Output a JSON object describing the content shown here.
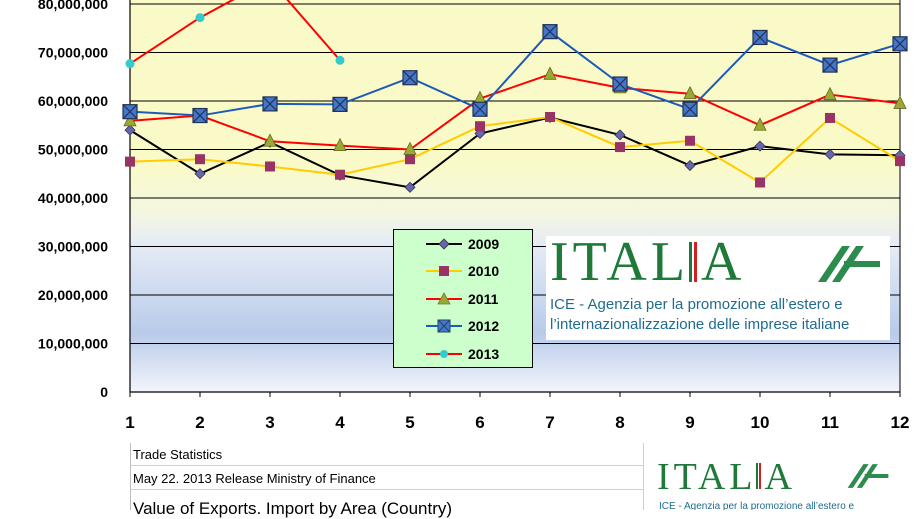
{
  "chart_data": {
    "type": "line",
    "x": [
      1,
      2,
      3,
      4,
      5,
      6,
      7,
      8,
      9,
      10,
      11,
      12
    ],
    "ylim": [
      0,
      80000000
    ],
    "yticks": [
      "0",
      "10,000,000",
      "20,000,000",
      "30,000,000",
      "40,000,000",
      "50,000,000",
      "60,000,000",
      "70,000,000",
      "80,000,000"
    ],
    "legend_position": "center",
    "series": [
      {
        "name": "2009",
        "color": "#000000",
        "marker": "diamond",
        "marker_color": "#6666aa",
        "values": [
          54000000,
          45000000,
          51500000,
          44700000,
          42200000,
          53300000,
          56600000,
          53000000,
          46700000,
          50700000,
          49000000,
          48800000
        ]
      },
      {
        "name": "2010",
        "color": "#ffcc00",
        "marker": "square",
        "marker_color": "#993366",
        "values": [
          47500000,
          48000000,
          46500000,
          44800000,
          48000000,
          54800000,
          56700000,
          50500000,
          51800000,
          43200000,
          56500000,
          47600000
        ]
      },
      {
        "name": "2011",
        "color": "#ff0000",
        "marker": "triangle",
        "marker_color": "#99aa33",
        "values": [
          55900000,
          57000000,
          51700000,
          50800000,
          50000000,
          60500000,
          65500000,
          62700000,
          61500000,
          55000000,
          61300000,
          59500000
        ]
      },
      {
        "name": "2012",
        "color": "#1e5bb8",
        "marker": "boxx",
        "marker_color": "#4477cc",
        "values": [
          57800000,
          57000000,
          59400000,
          59300000,
          64800000,
          58300000,
          74300000,
          63500000,
          58300000,
          73100000,
          67400000,
          71800000
        ]
      },
      {
        "name": "2013",
        "color": "#ff0000",
        "marker": "circle",
        "marker_color": "#33cccc",
        "values": [
          67700000,
          77200000,
          85000000,
          68400000,
          null,
          null,
          null,
          null,
          null,
          null,
          null,
          null
        ]
      }
    ]
  },
  "logo": {
    "wordmark": "ITAL",
    "wordmark_end": "A",
    "subtitle_line1": "ICE - Agenzia per la promozione all’estero e",
    "subtitle_line2": "l’internazionalizzazione delle imprese italiane",
    "small_subtitle": "ICE - Agenzia per la promozione all’estero e"
  },
  "table": {
    "row1": "Trade Statistics",
    "row2": "May 22. 2013 Release Ministry of Finance",
    "row3": "Value of Exports.  Import  by Area (Country)"
  }
}
